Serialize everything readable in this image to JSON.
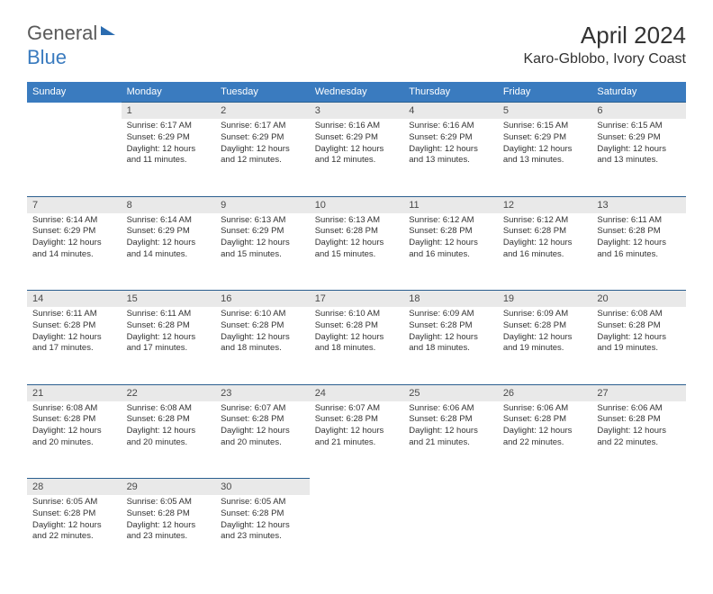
{
  "logo": {
    "word1": "General",
    "word2": "Blue"
  },
  "header": {
    "monthYear": "April 2024",
    "location": "Karo-Gblobo, Ivory Coast"
  },
  "colors": {
    "headerBg": "#3a7bbf",
    "headerText": "#ffffff",
    "dayBg": "#e9e9e9",
    "rule": "#2b5f8f",
    "text": "#333333"
  },
  "weekdays": [
    "Sunday",
    "Monday",
    "Tuesday",
    "Wednesday",
    "Thursday",
    "Friday",
    "Saturday"
  ],
  "weeks": [
    [
      null,
      {
        "n": "1",
        "sr": "6:17 AM",
        "ss": "6:29 PM",
        "dl": "12 hours and 11 minutes."
      },
      {
        "n": "2",
        "sr": "6:17 AM",
        "ss": "6:29 PM",
        "dl": "12 hours and 12 minutes."
      },
      {
        "n": "3",
        "sr": "6:16 AM",
        "ss": "6:29 PM",
        "dl": "12 hours and 12 minutes."
      },
      {
        "n": "4",
        "sr": "6:16 AM",
        "ss": "6:29 PM",
        "dl": "12 hours and 13 minutes."
      },
      {
        "n": "5",
        "sr": "6:15 AM",
        "ss": "6:29 PM",
        "dl": "12 hours and 13 minutes."
      },
      {
        "n": "6",
        "sr": "6:15 AM",
        "ss": "6:29 PM",
        "dl": "12 hours and 13 minutes."
      }
    ],
    [
      {
        "n": "7",
        "sr": "6:14 AM",
        "ss": "6:29 PM",
        "dl": "12 hours and 14 minutes."
      },
      {
        "n": "8",
        "sr": "6:14 AM",
        "ss": "6:29 PM",
        "dl": "12 hours and 14 minutes."
      },
      {
        "n": "9",
        "sr": "6:13 AM",
        "ss": "6:29 PM",
        "dl": "12 hours and 15 minutes."
      },
      {
        "n": "10",
        "sr": "6:13 AM",
        "ss": "6:28 PM",
        "dl": "12 hours and 15 minutes."
      },
      {
        "n": "11",
        "sr": "6:12 AM",
        "ss": "6:28 PM",
        "dl": "12 hours and 16 minutes."
      },
      {
        "n": "12",
        "sr": "6:12 AM",
        "ss": "6:28 PM",
        "dl": "12 hours and 16 minutes."
      },
      {
        "n": "13",
        "sr": "6:11 AM",
        "ss": "6:28 PM",
        "dl": "12 hours and 16 minutes."
      }
    ],
    [
      {
        "n": "14",
        "sr": "6:11 AM",
        "ss": "6:28 PM",
        "dl": "12 hours and 17 minutes."
      },
      {
        "n": "15",
        "sr": "6:11 AM",
        "ss": "6:28 PM",
        "dl": "12 hours and 17 minutes."
      },
      {
        "n": "16",
        "sr": "6:10 AM",
        "ss": "6:28 PM",
        "dl": "12 hours and 18 minutes."
      },
      {
        "n": "17",
        "sr": "6:10 AM",
        "ss": "6:28 PM",
        "dl": "12 hours and 18 minutes."
      },
      {
        "n": "18",
        "sr": "6:09 AM",
        "ss": "6:28 PM",
        "dl": "12 hours and 18 minutes."
      },
      {
        "n": "19",
        "sr": "6:09 AM",
        "ss": "6:28 PM",
        "dl": "12 hours and 19 minutes."
      },
      {
        "n": "20",
        "sr": "6:08 AM",
        "ss": "6:28 PM",
        "dl": "12 hours and 19 minutes."
      }
    ],
    [
      {
        "n": "21",
        "sr": "6:08 AM",
        "ss": "6:28 PM",
        "dl": "12 hours and 20 minutes."
      },
      {
        "n": "22",
        "sr": "6:08 AM",
        "ss": "6:28 PM",
        "dl": "12 hours and 20 minutes."
      },
      {
        "n": "23",
        "sr": "6:07 AM",
        "ss": "6:28 PM",
        "dl": "12 hours and 20 minutes."
      },
      {
        "n": "24",
        "sr": "6:07 AM",
        "ss": "6:28 PM",
        "dl": "12 hours and 21 minutes."
      },
      {
        "n": "25",
        "sr": "6:06 AM",
        "ss": "6:28 PM",
        "dl": "12 hours and 21 minutes."
      },
      {
        "n": "26",
        "sr": "6:06 AM",
        "ss": "6:28 PM",
        "dl": "12 hours and 22 minutes."
      },
      {
        "n": "27",
        "sr": "6:06 AM",
        "ss": "6:28 PM",
        "dl": "12 hours and 22 minutes."
      }
    ],
    [
      {
        "n": "28",
        "sr": "6:05 AM",
        "ss": "6:28 PM",
        "dl": "12 hours and 22 minutes."
      },
      {
        "n": "29",
        "sr": "6:05 AM",
        "ss": "6:28 PM",
        "dl": "12 hours and 23 minutes."
      },
      {
        "n": "30",
        "sr": "6:05 AM",
        "ss": "6:28 PM",
        "dl": "12 hours and 23 minutes."
      },
      null,
      null,
      null,
      null
    ]
  ],
  "labels": {
    "sunrise": "Sunrise: ",
    "sunset": "Sunset: ",
    "daylight": "Daylight: "
  }
}
